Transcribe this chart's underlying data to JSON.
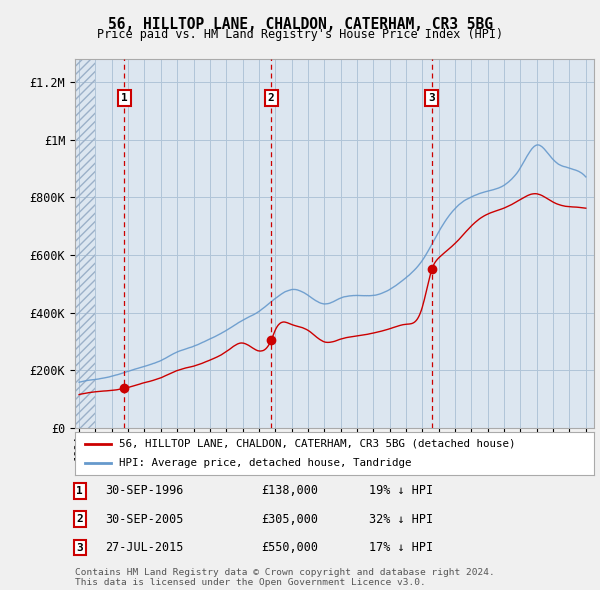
{
  "title": "56, HILLTOP LANE, CHALDON, CATERHAM, CR3 5BG",
  "subtitle": "Price paid vs. HM Land Registry's House Price Index (HPI)",
  "ytick_values": [
    0,
    200000,
    400000,
    600000,
    800000,
    1000000,
    1200000
  ],
  "ylim": [
    0,
    1280000
  ],
  "xlim_start": 1993.75,
  "xlim_end": 2025.5,
  "background_color": "#f0f0f0",
  "plot_bg_color": "#dce6f0",
  "red_line_color": "#cc0000",
  "blue_line_color": "#6699cc",
  "vline_color": "#cc0000",
  "grid_color": "#b0c4d8",
  "transactions": [
    {
      "label": "1",
      "date_num": 1996.75,
      "price": 138000,
      "pct": "19% ↓ HPI",
      "date_str": "30-SEP-1996"
    },
    {
      "label": "2",
      "date_num": 2005.75,
      "price": 305000,
      "pct": "32% ↓ HPI",
      "date_str": "30-SEP-2005"
    },
    {
      "label": "3",
      "date_num": 2015.58,
      "price": 550000,
      "pct": "17% ↓ HPI",
      "date_str": "27-JUL-2015"
    }
  ],
  "legend_label_red": "56, HILLTOP LANE, CHALDON, CATERHAM, CR3 5BG (detached house)",
  "legend_label_blue": "HPI: Average price, detached house, Tandridge",
  "footer": "Contains HM Land Registry data © Crown copyright and database right 2024.\nThis data is licensed under the Open Government Licence v3.0.",
  "hpi_key_x": [
    1994,
    1995,
    1996,
    1997,
    1998,
    1999,
    2000,
    2001,
    2002,
    2003,
    2004,
    2005,
    2006,
    2007,
    2008,
    2009,
    2010,
    2011,
    2012,
    2013,
    2014,
    2015,
    2016,
    2017,
    2018,
    2019,
    2020,
    2021,
    2022,
    2023,
    2024,
    2025
  ],
  "hpi_key_y": [
    158000,
    168000,
    180000,
    198000,
    215000,
    235000,
    265000,
    285000,
    310000,
    340000,
    375000,
    405000,
    450000,
    480000,
    460000,
    430000,
    450000,
    460000,
    460000,
    480000,
    520000,
    580000,
    680000,
    760000,
    800000,
    820000,
    840000,
    900000,
    980000,
    930000,
    900000,
    870000
  ],
  "price_key_x": [
    1994.0,
    1995.5,
    1996.75,
    1998,
    1999,
    2000,
    2001,
    2002,
    2003,
    2004,
    2005.75,
    2006,
    2007,
    2008,
    2009,
    2010,
    2011,
    2012,
    2013,
    2014,
    2015.0,
    2015.58,
    2016,
    2017,
    2018,
    2019,
    2020,
    2021,
    2022,
    2023,
    2024,
    2025.0
  ],
  "price_key_y": [
    115000,
    128000,
    138000,
    158000,
    175000,
    200000,
    215000,
    235000,
    265000,
    295000,
    305000,
    340000,
    360000,
    340000,
    300000,
    310000,
    320000,
    330000,
    345000,
    360000,
    420000,
    550000,
    590000,
    640000,
    700000,
    740000,
    760000,
    790000,
    810000,
    780000,
    765000,
    760000
  ]
}
